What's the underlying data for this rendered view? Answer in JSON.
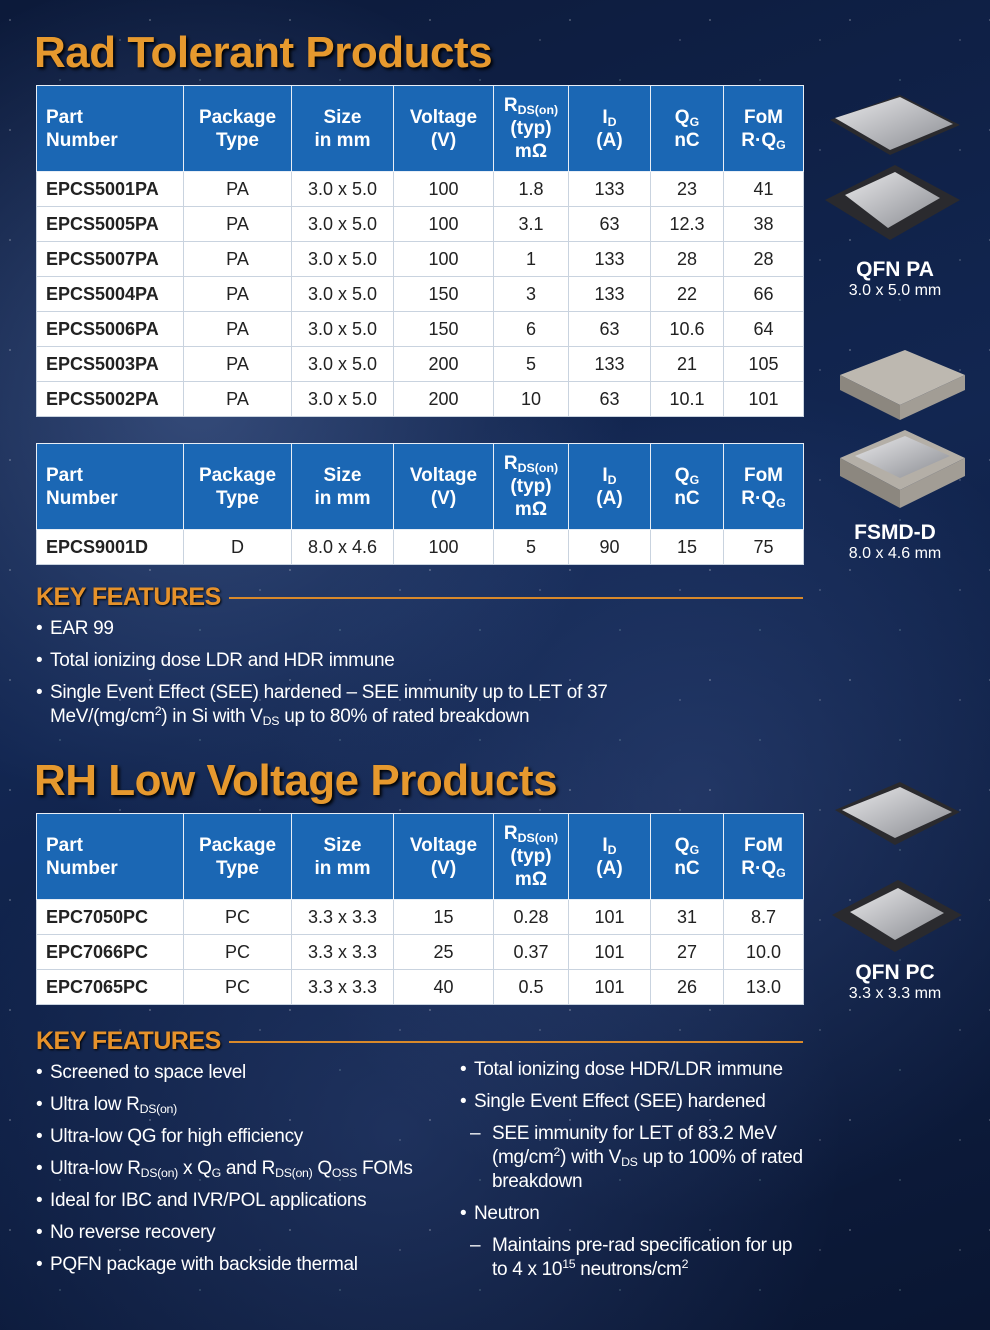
{
  "sections": [
    {
      "title": "Rad Tolerant Products",
      "tables": [
        {
          "header": [
            [
              [
                "Part"
              ],
              [
                "Number"
              ]
            ],
            [
              [
                "Package"
              ],
              [
                "Type"
              ]
            ],
            [
              [
                "Size"
              ],
              [
                "in mm"
              ]
            ],
            [
              [
                "Voltage"
              ],
              [
                "(V)"
              ]
            ],
            [
              [
                "R",
                {
                  "sub": "DS(on)"
                }
              ],
              [
                "(typ)"
              ],
              [
                "mΩ"
              ]
            ],
            [
              [
                "I",
                {
                  "sub": "D"
                }
              ],
              [
                "(A)"
              ]
            ],
            [
              [
                "Q",
                {
                  "sub": "G"
                }
              ],
              [
                "nC"
              ]
            ],
            [
              [
                "FoM"
              ],
              [
                "R·Q",
                {
                  "sub": "G"
                }
              ]
            ]
          ],
          "rows": [
            [
              "EPCS5001PA",
              "PA",
              "3.0 x 5.0",
              "100",
              "1.8",
              "133",
              "23",
              "41"
            ],
            [
              "EPCS5005PA",
              "PA",
              "3.0 x 5.0",
              "100",
              "3.1",
              "63",
              "12.3",
              "38"
            ],
            [
              "EPCS5007PA",
              "PA",
              "3.0 x 5.0",
              "100",
              "1",
              "133",
              "28",
              "28"
            ],
            [
              "EPCS5004PA",
              "PA",
              "3.0 x 5.0",
              "150",
              "3",
              "133",
              "22",
              "66"
            ],
            [
              "EPCS5006PA",
              "PA",
              "3.0 x 5.0",
              "150",
              "6",
              "63",
              "10.6",
              "64"
            ],
            [
              "EPCS5003PA",
              "PA",
              "3.0 x 5.0",
              "200",
              "5",
              "133",
              "21",
              "105"
            ],
            [
              "EPCS5002PA",
              "PA",
              "3.0 x 5.0",
              "200",
              "10",
              "63",
              "10.1",
              "101"
            ]
          ]
        },
        {
          "header": [
            [
              [
                "Part"
              ],
              [
                "Number"
              ]
            ],
            [
              [
                "Package"
              ],
              [
                "Type"
              ]
            ],
            [
              [
                "Size"
              ],
              [
                "in mm"
              ]
            ],
            [
              [
                "Voltage"
              ],
              [
                "(V)"
              ]
            ],
            [
              [
                "R",
                {
                  "sub": "DS(on)"
                }
              ],
              [
                "(typ)"
              ],
              [
                "mΩ"
              ]
            ],
            [
              [
                "I",
                {
                  "sub": "D"
                }
              ],
              [
                "(A)"
              ]
            ],
            [
              [
                "Q",
                {
                  "sub": "G"
                }
              ],
              [
                "nC"
              ]
            ],
            [
              [
                "FoM"
              ],
              [
                "R·Q",
                {
                  "sub": "G"
                }
              ]
            ]
          ],
          "rows": [
            [
              "EPCS9001D",
              "D",
              "8.0 x 4.6",
              "100",
              "5",
              "90",
              "15",
              "75"
            ]
          ]
        }
      ],
      "features": {
        "heading": "KEY FEATURES",
        "columns": [
          [
            {
              "text": [
                "EAR 99"
              ]
            },
            {
              "text": [
                "Total ionizing dose LDR and HDR immune"
              ]
            },
            {
              "text": [
                "Single Event Effect (SEE) hardened – SEE immunity up to LET of 37 MeV/(mg/cm",
                {
                  "sup": "2"
                },
                ") in Si with V",
                {
                  "sub": "DS"
                },
                " up to 80% of rated breakdown"
              ]
            }
          ]
        ]
      }
    },
    {
      "title": "RH Low Voltage Products",
      "tables": [
        {
          "header": [
            [
              [
                "Part"
              ],
              [
                "Number"
              ]
            ],
            [
              [
                "Package"
              ],
              [
                "Type"
              ]
            ],
            [
              [
                "Size"
              ],
              [
                "in mm"
              ]
            ],
            [
              [
                "Voltage"
              ],
              [
                "(V)"
              ]
            ],
            [
              [
                "R",
                {
                  "sub": "DS(on)"
                }
              ],
              [
                "(typ)"
              ],
              [
                "mΩ"
              ]
            ],
            [
              [
                "I",
                {
                  "sub": "D"
                }
              ],
              [
                "(A)"
              ]
            ],
            [
              [
                "Q",
                {
                  "sub": "G"
                }
              ],
              [
                "nC"
              ]
            ],
            [
              [
                "FoM"
              ],
              [
                "R·Q",
                {
                  "sub": "G"
                }
              ]
            ]
          ],
          "rows": [
            [
              "EPC7050PC",
              "PC",
              "3.3 x 3.3",
              "15",
              "0.28",
              "101",
              "31",
              "8.7"
            ],
            [
              "EPC7066PC",
              "PC",
              "3.3 x 3.3",
              "25",
              "0.37",
              "101",
              "27",
              "10.0"
            ],
            [
              "EPC7065PC",
              "PC",
              "3.3 x 3.3",
              "40",
              "0.5",
              "101",
              "26",
              "13.0"
            ]
          ]
        }
      ],
      "features": {
        "heading": "KEY FEATURES",
        "columns": [
          [
            {
              "text": [
                "Screened to space level"
              ]
            },
            {
              "text": [
                "Ultra low R",
                {
                  "sub": "DS(on)"
                }
              ]
            },
            {
              "text": [
                "Ultra-low QG for high efficiency"
              ]
            },
            {
              "text": [
                "Ultra-low R",
                {
                  "sub": "DS(on)"
                },
                " x Q",
                {
                  "sub": "G"
                },
                " and R",
                {
                  "sub": "DS(on)"
                },
                " Q",
                {
                  "sub": "OSS"
                },
                " FOMs"
              ]
            },
            {
              "text": [
                "Ideal for IBC and IVR/POL applications"
              ]
            },
            {
              "text": [
                "No reverse recovery"
              ]
            },
            {
              "text": [
                "PQFN package with backside thermal"
              ]
            }
          ],
          [
            {
              "text": [
                "Total ionizing dose HDR/LDR immune"
              ]
            },
            {
              "text": [
                "Single Event Effect (SEE) hardened"
              ],
              "sub_items": [
                [
                  "SEE immunity for LET of 83.2 MeV (mg/cm",
                  {
                    "sup": "2"
                  },
                  ") with V",
                  {
                    "sub": "DS"
                  },
                  " up to 100% of rated breakdown"
                ]
              ]
            },
            {
              "text": [
                "Neutron"
              ],
              "sub_items": [
                [
                  "Maintains pre-rad specification for up to 4 x 10",
                  {
                    "sup": "15"
                  },
                  " neutrons/cm",
                  {
                    "sup": "2"
                  }
                ]
              ]
            }
          ]
        ]
      }
    }
  ],
  "products": [
    {
      "name": "QFN PA",
      "size": "3.0 x 5.0 mm"
    },
    {
      "name": "FSMD-D",
      "size": "8.0 x 4.6 mm"
    },
    {
      "name": "QFN PC",
      "size": "3.3 x 3.3 mm"
    }
  ]
}
